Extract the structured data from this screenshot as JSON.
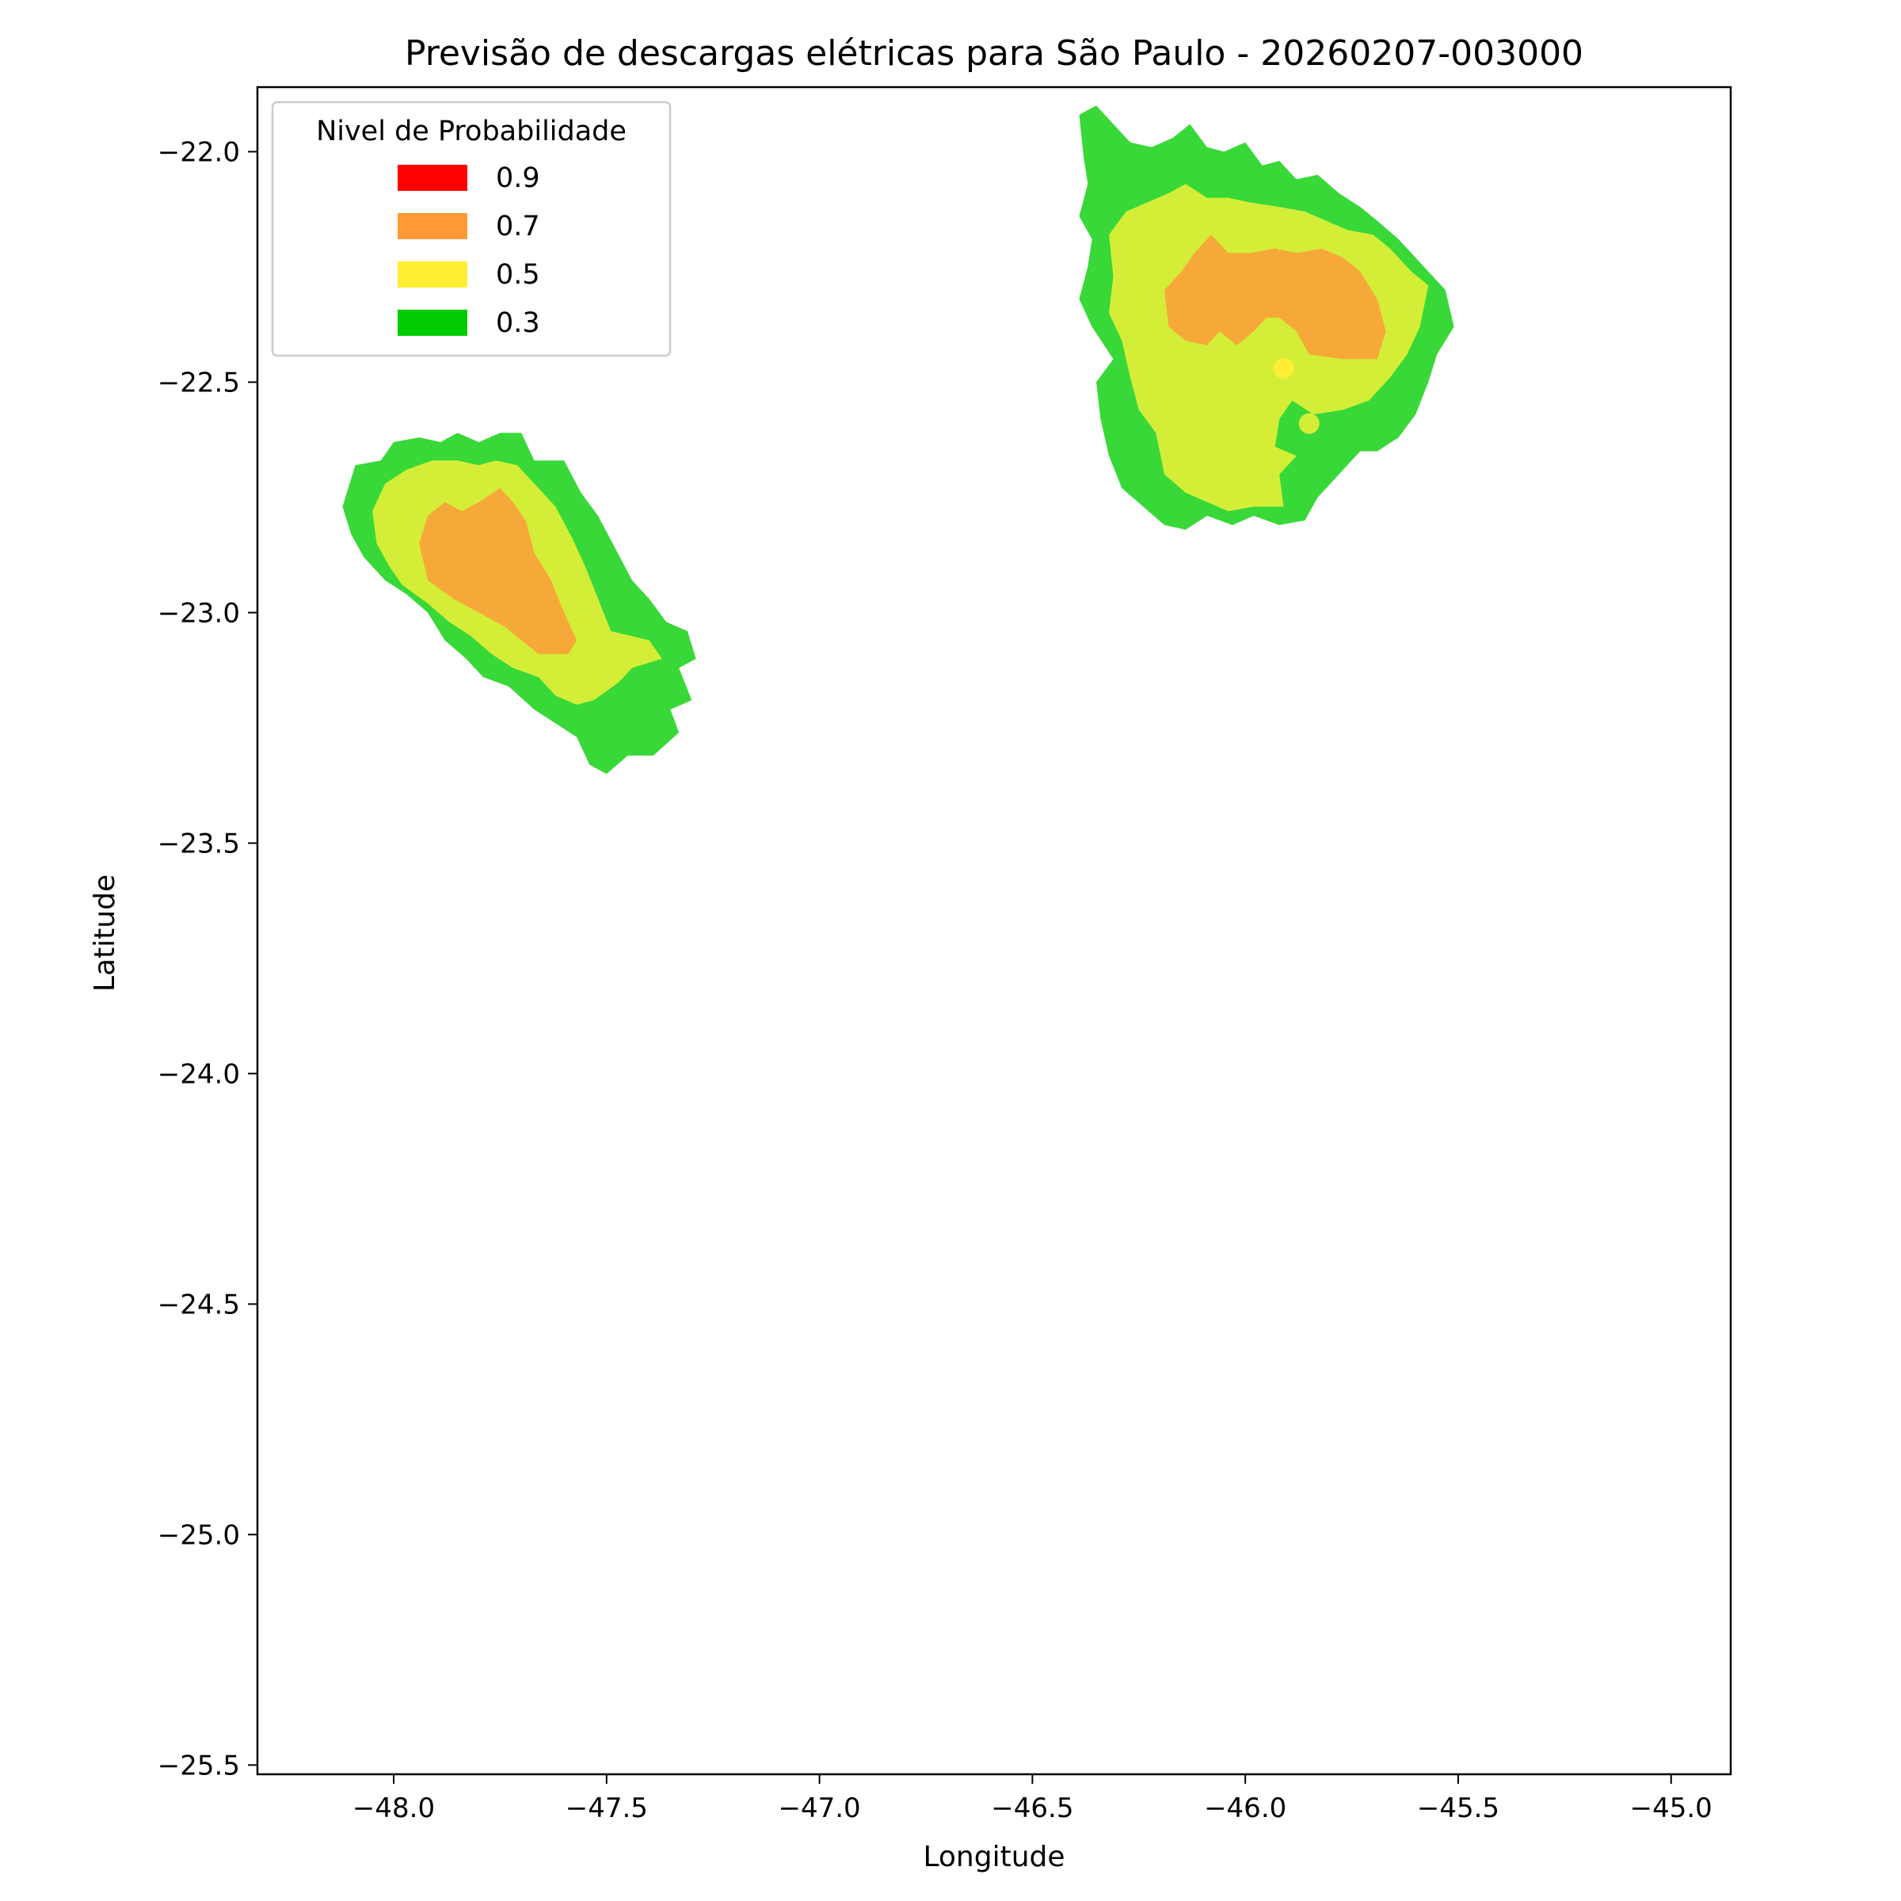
{
  "chart_data": {
    "type": "contour",
    "title": "Previsão de descargas elétricas para São Paulo - 20260207-003000",
    "xlabel": "Longitude",
    "ylabel": "Latitude",
    "xlim": [
      -48.32,
      -44.86
    ],
    "ylim": [
      -25.52,
      -21.86
    ],
    "xticks": [
      -48.0,
      -47.5,
      -47.0,
      -46.5,
      -46.0,
      -45.5,
      -45.0
    ],
    "xtick_labels": [
      "−48.0",
      "−47.5",
      "−47.0",
      "−46.5",
      "−46.0",
      "−45.5",
      "−45.0"
    ],
    "yticks": [
      -22.0,
      -22.5,
      -23.0,
      -23.5,
      -24.0,
      -24.5,
      -25.0,
      -25.5
    ],
    "ytick_labels": [
      "−22.0",
      "−22.5",
      "−23.0",
      "−23.5",
      "−24.0",
      "−24.5",
      "−25.0",
      "−25.5"
    ],
    "grid": false,
    "legend": {
      "title": "Nivel de Probabilidade",
      "placement": "top-left",
      "entries": [
        {
          "label": "0.9",
          "color": "#ff0000"
        },
        {
          "label": "0.7",
          "color": "#ff9933"
        },
        {
          "label": "0.5",
          "color": "#ffee33"
        },
        {
          "label": "0.3",
          "color": "#00cc00"
        }
      ]
    },
    "level_fill_colors": {
      "0.3": "#38d838",
      "0.5": "#d4ee38",
      "0.7": "#f6a938"
    },
    "regions": [
      {
        "level": "0.3",
        "lonlat": [
          [
            -48.12,
            -22.77
          ],
          [
            -48.09,
            -22.68
          ],
          [
            -48.03,
            -22.67
          ],
          [
            -48.0,
            -22.63
          ],
          [
            -47.94,
            -22.62
          ],
          [
            -47.89,
            -22.63
          ],
          [
            -47.85,
            -22.61
          ],
          [
            -47.8,
            -22.63
          ],
          [
            -47.75,
            -22.61
          ],
          [
            -47.7,
            -22.61
          ],
          [
            -47.67,
            -22.67
          ],
          [
            -47.6,
            -22.67
          ],
          [
            -47.56,
            -22.74
          ],
          [
            -47.52,
            -22.79
          ],
          [
            -47.48,
            -22.86
          ],
          [
            -47.44,
            -22.93
          ],
          [
            -47.4,
            -22.97
          ],
          [
            -47.36,
            -23.02
          ],
          [
            -47.31,
            -23.04
          ],
          [
            -47.29,
            -23.1
          ],
          [
            -47.33,
            -23.12
          ],
          [
            -47.3,
            -23.19
          ],
          [
            -47.35,
            -23.21
          ],
          [
            -47.33,
            -23.26
          ],
          [
            -47.39,
            -23.31
          ],
          [
            -47.45,
            -23.31
          ],
          [
            -47.5,
            -23.35
          ],
          [
            -47.54,
            -23.33
          ],
          [
            -47.57,
            -23.27
          ],
          [
            -47.62,
            -23.24
          ],
          [
            -47.67,
            -23.21
          ],
          [
            -47.73,
            -23.16
          ],
          [
            -47.79,
            -23.14
          ],
          [
            -47.83,
            -23.1
          ],
          [
            -47.88,
            -23.06
          ],
          [
            -47.92,
            -23.0
          ],
          [
            -47.97,
            -22.96
          ],
          [
            -48.02,
            -22.93
          ],
          [
            -48.07,
            -22.88
          ],
          [
            -48.1,
            -22.83
          ]
        ]
      },
      {
        "level": "0.5",
        "lonlat": [
          [
            -48.05,
            -22.78
          ],
          [
            -48.02,
            -22.72
          ],
          [
            -47.97,
            -22.69
          ],
          [
            -47.91,
            -22.67
          ],
          [
            -47.85,
            -22.67
          ],
          [
            -47.8,
            -22.68
          ],
          [
            -47.76,
            -22.67
          ],
          [
            -47.71,
            -22.68
          ],
          [
            -47.66,
            -22.73
          ],
          [
            -47.62,
            -22.77
          ],
          [
            -47.58,
            -22.84
          ],
          [
            -47.55,
            -22.9
          ],
          [
            -47.52,
            -22.97
          ],
          [
            -47.49,
            -23.04
          ],
          [
            -47.4,
            -23.06
          ],
          [
            -47.37,
            -23.1
          ],
          [
            -47.44,
            -23.12
          ],
          [
            -47.47,
            -23.15
          ],
          [
            -47.53,
            -23.19
          ],
          [
            -47.57,
            -23.2
          ],
          [
            -47.62,
            -23.18
          ],
          [
            -47.66,
            -23.14
          ],
          [
            -47.72,
            -23.12
          ],
          [
            -47.77,
            -23.09
          ],
          [
            -47.82,
            -23.05
          ],
          [
            -47.87,
            -23.02
          ],
          [
            -47.92,
            -22.98
          ],
          [
            -47.98,
            -22.94
          ],
          [
            -48.01,
            -22.9
          ],
          [
            -48.04,
            -22.85
          ]
        ]
      },
      {
        "level": "0.7",
        "lonlat": [
          [
            -47.94,
            -22.85
          ],
          [
            -47.92,
            -22.79
          ],
          [
            -47.88,
            -22.76
          ],
          [
            -47.84,
            -22.78
          ],
          [
            -47.8,
            -22.76
          ],
          [
            -47.75,
            -22.73
          ],
          [
            -47.72,
            -22.76
          ],
          [
            -47.69,
            -22.8
          ],
          [
            -47.67,
            -22.87
          ],
          [
            -47.63,
            -22.93
          ],
          [
            -47.6,
            -23.0
          ],
          [
            -47.57,
            -23.06
          ],
          [
            -47.59,
            -23.09
          ],
          [
            -47.66,
            -23.09
          ],
          [
            -47.7,
            -23.06
          ],
          [
            -47.74,
            -23.03
          ],
          [
            -47.8,
            -23.0
          ],
          [
            -47.86,
            -22.97
          ],
          [
            -47.92,
            -22.93
          ]
        ]
      },
      {
        "level": "0.3",
        "lonlat": [
          [
            -46.39,
            -21.92
          ],
          [
            -46.35,
            -21.9
          ],
          [
            -46.31,
            -21.94
          ],
          [
            -46.27,
            -21.98
          ],
          [
            -46.22,
            -21.99
          ],
          [
            -46.17,
            -21.97
          ],
          [
            -46.13,
            -21.94
          ],
          [
            -46.09,
            -21.99
          ],
          [
            -46.05,
            -22.0
          ],
          [
            -46.0,
            -21.98
          ],
          [
            -45.96,
            -22.03
          ],
          [
            -45.92,
            -22.02
          ],
          [
            -45.88,
            -22.06
          ],
          [
            -45.83,
            -22.05
          ],
          [
            -45.78,
            -22.09
          ],
          [
            -45.73,
            -22.12
          ],
          [
            -45.69,
            -22.15
          ],
          [
            -45.64,
            -22.19
          ],
          [
            -45.58,
            -22.25
          ],
          [
            -45.53,
            -22.3
          ],
          [
            -45.51,
            -22.38
          ],
          [
            -45.55,
            -22.44
          ],
          [
            -45.57,
            -22.5
          ],
          [
            -45.6,
            -22.57
          ],
          [
            -45.64,
            -22.62
          ],
          [
            -45.69,
            -22.65
          ],
          [
            -45.73,
            -22.65
          ],
          [
            -45.78,
            -22.7
          ],
          [
            -45.83,
            -22.75
          ],
          [
            -45.86,
            -22.8
          ],
          [
            -45.92,
            -22.81
          ],
          [
            -45.98,
            -22.79
          ],
          [
            -46.03,
            -22.81
          ],
          [
            -46.09,
            -22.79
          ],
          [
            -46.14,
            -22.82
          ],
          [
            -46.19,
            -22.81
          ],
          [
            -46.24,
            -22.77
          ],
          [
            -46.29,
            -22.73
          ],
          [
            -46.32,
            -22.66
          ],
          [
            -46.34,
            -22.58
          ],
          [
            -46.35,
            -22.5
          ],
          [
            -46.31,
            -22.45
          ],
          [
            -46.36,
            -22.38
          ],
          [
            -46.39,
            -22.32
          ],
          [
            -46.37,
            -22.25
          ],
          [
            -46.36,
            -22.19
          ],
          [
            -46.39,
            -22.14
          ],
          [
            -46.37,
            -22.07
          ],
          [
            -46.38,
            -22.01
          ]
        ]
      },
      {
        "level": "0.5",
        "lonlat": [
          [
            -46.32,
            -22.18
          ],
          [
            -46.28,
            -22.13
          ],
          [
            -46.23,
            -22.11
          ],
          [
            -46.18,
            -22.09
          ],
          [
            -46.14,
            -22.07
          ],
          [
            -46.09,
            -22.1
          ],
          [
            -46.04,
            -22.1
          ],
          [
            -45.99,
            -22.11
          ],
          [
            -45.92,
            -22.12
          ],
          [
            -45.86,
            -22.13
          ],
          [
            -45.81,
            -22.15
          ],
          [
            -45.76,
            -22.17
          ],
          [
            -45.7,
            -22.18
          ],
          [
            -45.66,
            -22.21
          ],
          [
            -45.61,
            -22.26
          ],
          [
            -45.57,
            -22.29
          ],
          [
            -45.59,
            -22.38
          ],
          [
            -45.62,
            -22.44
          ],
          [
            -45.66,
            -22.49
          ],
          [
            -45.71,
            -22.54
          ],
          [
            -45.77,
            -22.56
          ],
          [
            -45.84,
            -22.57
          ],
          [
            -45.89,
            -22.54
          ],
          [
            -45.92,
            -22.58
          ],
          [
            -45.93,
            -22.64
          ],
          [
            -45.88,
            -22.66
          ],
          [
            -45.92,
            -22.7
          ],
          [
            -45.91,
            -22.77
          ],
          [
            -45.98,
            -22.77
          ],
          [
            -46.04,
            -22.78
          ],
          [
            -46.09,
            -22.76
          ],
          [
            -46.14,
            -22.74
          ],
          [
            -46.19,
            -22.7
          ],
          [
            -46.21,
            -22.61
          ],
          [
            -46.25,
            -22.56
          ],
          [
            -46.27,
            -22.49
          ],
          [
            -46.29,
            -22.41
          ],
          [
            -46.32,
            -22.35
          ],
          [
            -46.31,
            -22.27
          ]
        ]
      },
      {
        "level": "0.7",
        "lonlat": [
          [
            -46.19,
            -22.3
          ],
          [
            -46.15,
            -22.26
          ],
          [
            -46.12,
            -22.22
          ],
          [
            -46.08,
            -22.18
          ],
          [
            -46.04,
            -22.22
          ],
          [
            -45.99,
            -22.22
          ],
          [
            -45.93,
            -22.21
          ],
          [
            -45.88,
            -22.22
          ],
          [
            -45.82,
            -22.21
          ],
          [
            -45.77,
            -22.23
          ],
          [
            -45.73,
            -22.26
          ],
          [
            -45.69,
            -22.32
          ],
          [
            -45.67,
            -22.39
          ],
          [
            -45.69,
            -22.45
          ],
          [
            -45.77,
            -22.45
          ],
          [
            -45.85,
            -22.44
          ],
          [
            -45.88,
            -22.39
          ],
          [
            -45.92,
            -22.36
          ],
          [
            -45.95,
            -22.36
          ],
          [
            -45.98,
            -22.39
          ],
          [
            -46.02,
            -22.42
          ],
          [
            -46.06,
            -22.39
          ],
          [
            -46.09,
            -22.42
          ],
          [
            -46.14,
            -22.41
          ],
          [
            -46.18,
            -22.38
          ]
        ]
      }
    ],
    "dots": [
      {
        "lon": -45.91,
        "lat": -22.47,
        "level": "0.5",
        "color": "#ffee33"
      },
      {
        "lon": -45.85,
        "lat": -22.59,
        "level": "0.5",
        "color": "#d4ee38"
      }
    ]
  }
}
